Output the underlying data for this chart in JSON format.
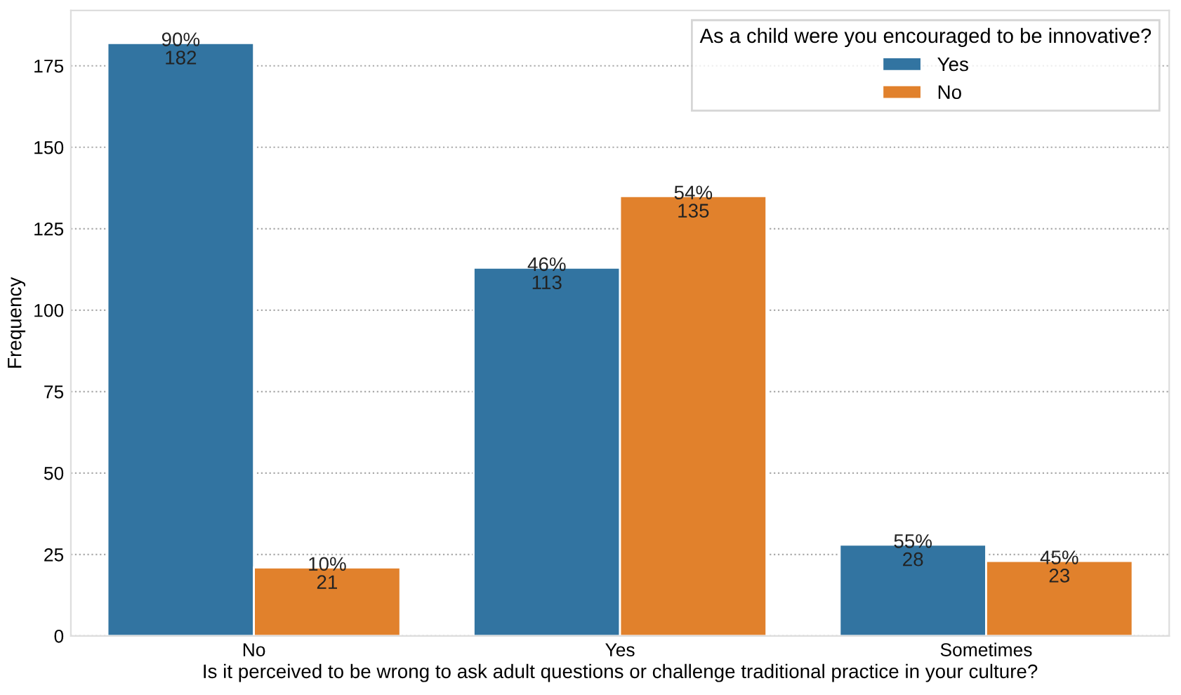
{
  "chart_data": {
    "type": "bar",
    "xlabel": "Is it perceived to be wrong to ask adult questions or challenge traditional practice in your culture?",
    "ylabel": "Frequency",
    "legend_title": "As a child were you encouraged to be innovative?",
    "categories": [
      "No",
      "Yes",
      "Sometimes"
    ],
    "series": [
      {
        "name": "Yes",
        "color": "#3274a1",
        "values": [
          182,
          113,
          28
        ],
        "value_labels": [
          "90%\n182",
          "46%\n113",
          "55%\n28"
        ]
      },
      {
        "name": "No",
        "color": "#e1812c",
        "values": [
          21,
          135,
          23
        ],
        "value_labels": [
          "10%\n21",
          "54%\n135",
          "45%\n23"
        ]
      }
    ],
    "ylim": [
      0,
      192
    ],
    "yticks": [
      0,
      25,
      50,
      75,
      100,
      125,
      150,
      175
    ],
    "grid": "y",
    "legend": "top right"
  }
}
